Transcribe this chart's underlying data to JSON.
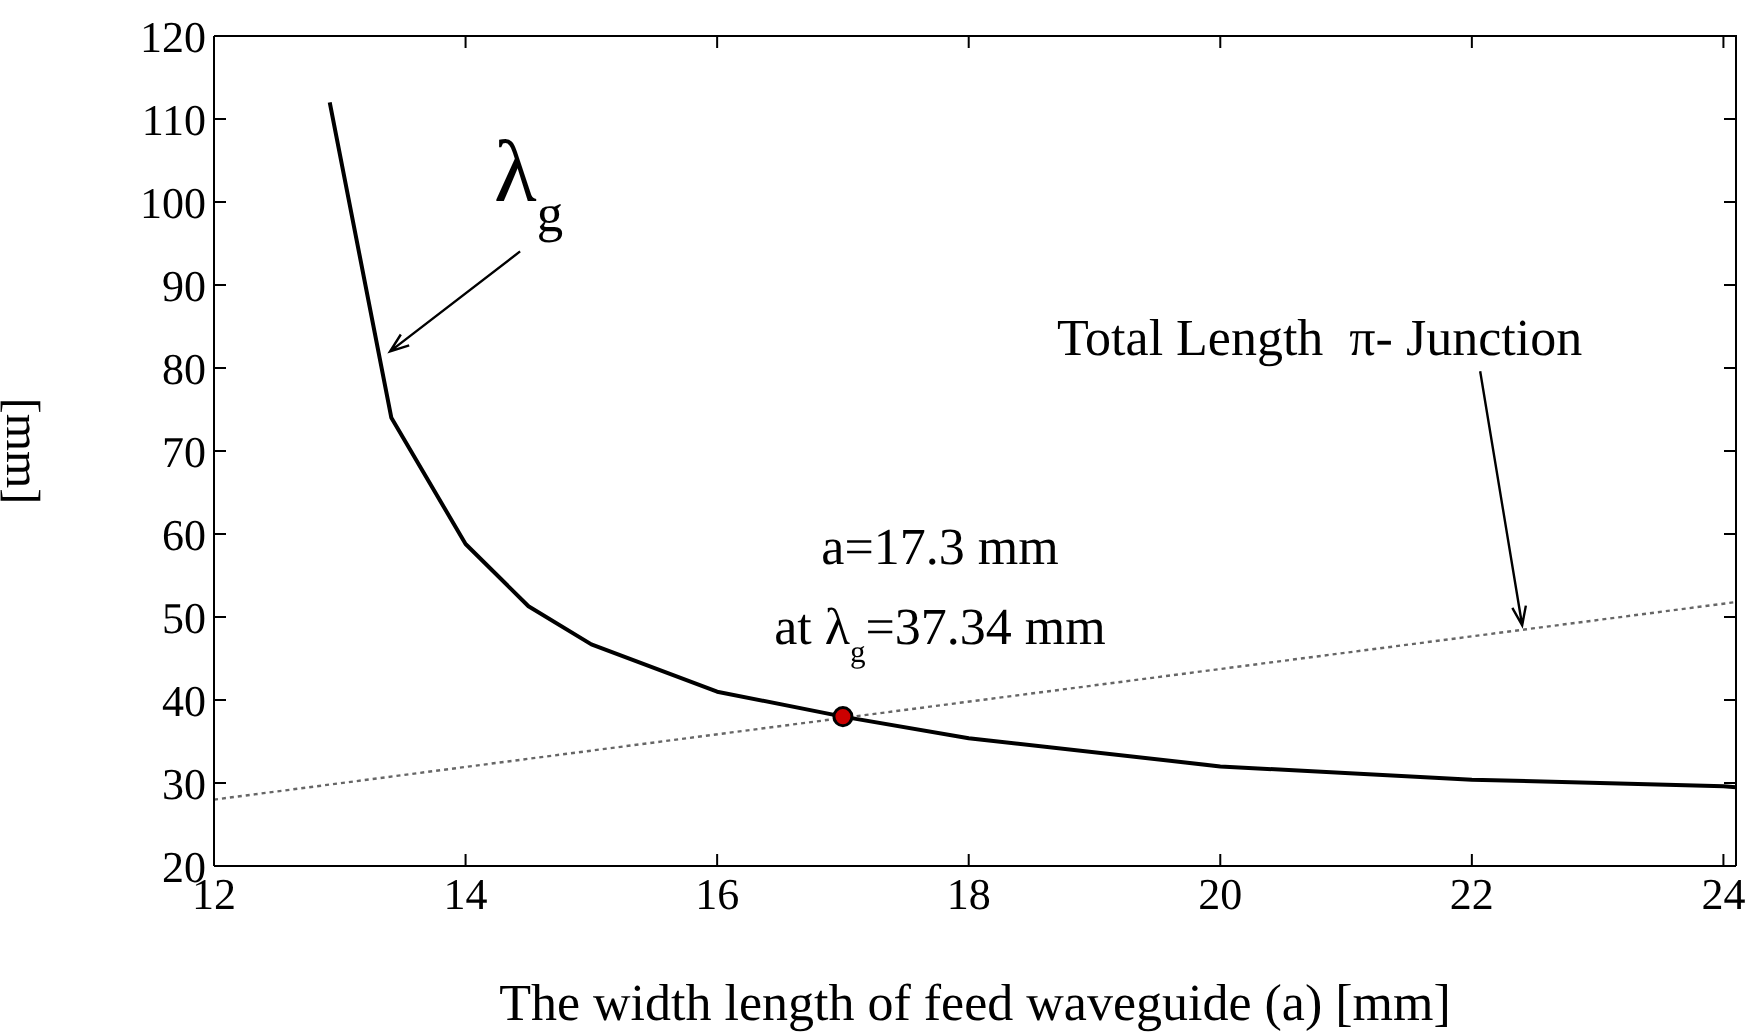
{
  "chart_data": {
    "type": "line",
    "xlabel": "The width length of  feed waveguide (a)  [mm]",
    "ylabel": "[mm]",
    "xlim": [
      12,
      24.1
    ],
    "xticks": [
      12,
      14,
      16,
      18,
      20,
      22,
      24
    ],
    "ylim": [
      20,
      120
    ],
    "yticks": [
      20,
      30,
      40,
      50,
      60,
      70,
      80,
      90,
      100,
      110,
      120
    ],
    "grid": false,
    "series": [
      {
        "color": "#000000",
        "line_style": "solid",
        "marker": "none",
        "x": [
          12.92,
          13.41,
          14,
          14.5,
          15,
          16,
          17,
          18,
          20,
          22,
          24,
          24.1
        ],
        "values": [
          112,
          74,
          58.8,
          51.3,
          46.7,
          41,
          38,
          35.4,
          32,
          30.4,
          29.6,
          29.5
        ]
      },
      {
        "color": "#666666",
        "line_style": "dotted",
        "marker": "none",
        "x": [
          12,
          24.1
        ],
        "values": [
          28,
          51.8
        ]
      },
      {
        "type": "scatter",
        "color": "#cc0000",
        "marker": "circle",
        "x": [
          17
        ],
        "values": [
          38
        ]
      }
    ],
    "annotations": [
      {
        "text": "λ$_{g}$",
        "x": 13.4,
        "y": 82
      },
      {
        "text": "Total Length  π- Junction",
        "x": 22.4,
        "y": 49
      },
      "a=17.3 mm",
      "at λ$_{g}$=37.34 mm"
    ]
  }
}
